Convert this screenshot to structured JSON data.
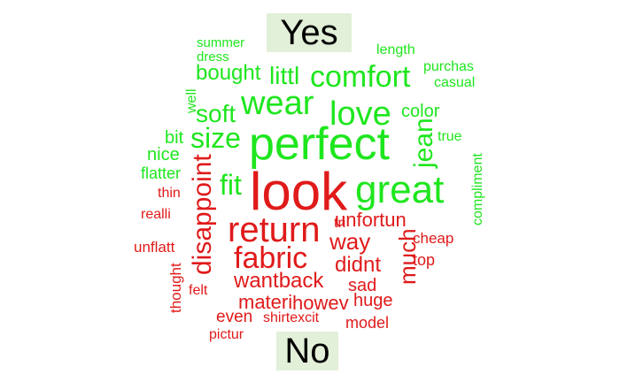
{
  "colors": {
    "yes": "#1ee61e",
    "no": "#e01a1a",
    "label_bg": "#e2efd9"
  },
  "labels": {
    "top": "Yes",
    "bottom": "No"
  },
  "words": [
    {
      "text": "summer",
      "group": "yes"
    },
    {
      "text": "dress",
      "group": "yes"
    },
    {
      "text": "length",
      "group": "yes"
    },
    {
      "text": "purchas",
      "group": "yes"
    },
    {
      "text": "bought",
      "group": "yes"
    },
    {
      "text": "littl",
      "group": "yes"
    },
    {
      "text": "comfort",
      "group": "yes"
    },
    {
      "text": "casual",
      "group": "yes"
    },
    {
      "text": "well",
      "group": "yes"
    },
    {
      "text": "wear",
      "group": "yes"
    },
    {
      "text": "soft",
      "group": "yes"
    },
    {
      "text": "love",
      "group": "yes"
    },
    {
      "text": "color",
      "group": "yes"
    },
    {
      "text": "bit",
      "group": "yes"
    },
    {
      "text": "size",
      "group": "yes"
    },
    {
      "text": "perfect",
      "group": "yes"
    },
    {
      "text": "true",
      "group": "yes"
    },
    {
      "text": "nice",
      "group": "yes"
    },
    {
      "text": "jean",
      "group": "yes"
    },
    {
      "text": "compliment",
      "group": "yes"
    },
    {
      "text": "flatter",
      "group": "yes"
    },
    {
      "text": "fit",
      "group": "yes"
    },
    {
      "text": "great",
      "group": "yes"
    },
    {
      "text": "look",
      "group": "no"
    },
    {
      "text": "thin",
      "group": "no"
    },
    {
      "text": "disappoint",
      "group": "no"
    },
    {
      "text": "realli",
      "group": "no"
    },
    {
      "text": "return",
      "group": "no"
    },
    {
      "text": "tri",
      "group": "no"
    },
    {
      "text": "unfortun",
      "group": "no"
    },
    {
      "text": "way",
      "group": "no"
    },
    {
      "text": "cheap",
      "group": "no"
    },
    {
      "text": "unflatt",
      "group": "no"
    },
    {
      "text": "fabric",
      "group": "no"
    },
    {
      "text": "much",
      "group": "no"
    },
    {
      "text": "top",
      "group": "no"
    },
    {
      "text": "didnt",
      "group": "no"
    },
    {
      "text": "wantback",
      "group": "no"
    },
    {
      "text": "sad",
      "group": "no"
    },
    {
      "text": "thought",
      "group": "no"
    },
    {
      "text": "felt",
      "group": "no"
    },
    {
      "text": "materi",
      "group": "no"
    },
    {
      "text": "howev",
      "group": "no"
    },
    {
      "text": "huge",
      "group": "no"
    },
    {
      "text": "even",
      "group": "no"
    },
    {
      "text": "shirtexcit",
      "group": "no"
    },
    {
      "text": "model",
      "group": "no"
    },
    {
      "text": "pictur",
      "group": "no"
    }
  ]
}
